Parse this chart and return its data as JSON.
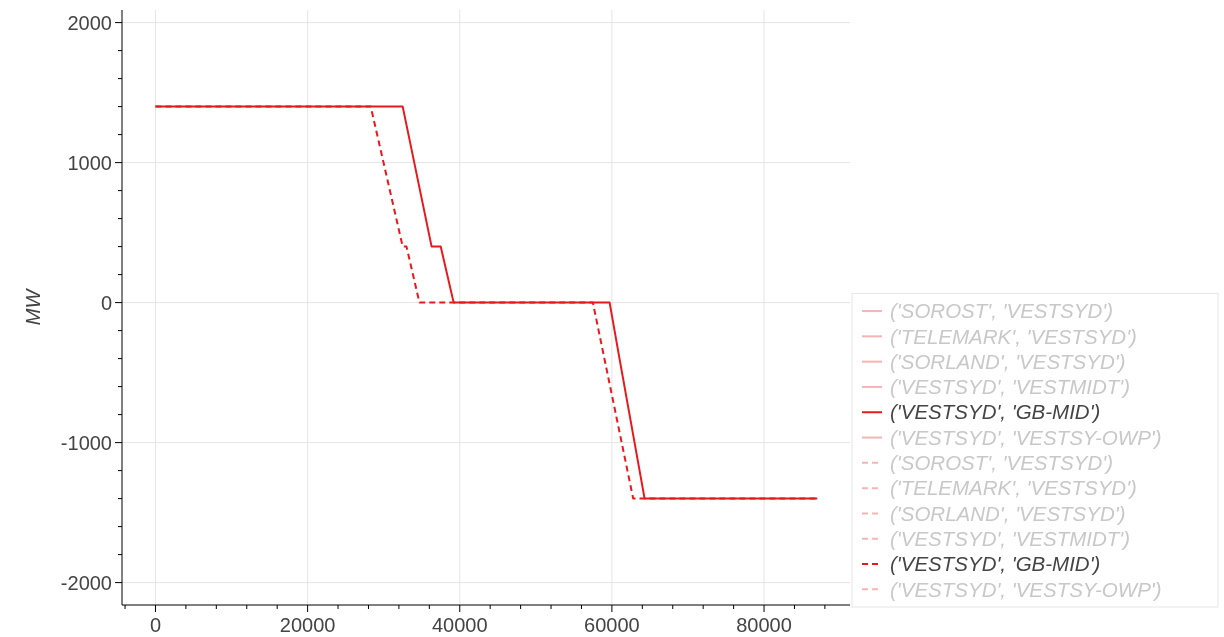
{
  "chart_data": {
    "type": "line",
    "ylabel": "MW",
    "xlim": [
      -4400,
      91300
    ],
    "ylim": [
      -2160,
      2090
    ],
    "xticks": [
      0,
      20000,
      40000,
      60000,
      80000
    ],
    "yticks": [
      -2000,
      -1000,
      0,
      1000,
      2000
    ],
    "grid": true,
    "legend": "bottom right",
    "series": [
      {
        "name": "('SOROST', 'VESTSYD')",
        "color": "#f5b5b5",
        "line_style": "solid"
      },
      {
        "name": "('TELEMARK', 'VESTSYD')",
        "color": "#f5b5b5",
        "line_style": "solid"
      },
      {
        "name": "('SORLAND', 'VESTSYD')",
        "color": "#f5b5b5",
        "line_style": "solid"
      },
      {
        "name": "('VESTSYD', 'VESTMIDT')",
        "color": "#f5b5b5",
        "line_style": "solid"
      },
      {
        "name": "('VESTSYD', 'GB-MID')",
        "color": "#e8191c",
        "line_style": "solid",
        "x": [
          0,
          32500,
          36300,
          37500,
          39200,
          59700,
          61000,
          64300,
          87000
        ],
        "values": [
          1400,
          1400,
          400,
          400,
          0,
          0,
          -400,
          -1400,
          -1400
        ]
      },
      {
        "name": "('VESTSYD', 'VESTSY-OWP')",
        "color": "#f5b5b5",
        "line_style": "solid"
      },
      {
        "name": "('SOROST', 'VESTSYD')",
        "color": "#f5b5b5",
        "line_style": "dashed"
      },
      {
        "name": "('TELEMARK', 'VESTSYD')",
        "color": "#f5b5b5",
        "line_style": "dashed"
      },
      {
        "name": "('SORLAND', 'VESTSYD')",
        "color": "#f5b5b5",
        "line_style": "dashed"
      },
      {
        "name": "('VESTSYD', 'VESTMIDT')",
        "color": "#f5b5b5",
        "line_style": "dashed"
      },
      {
        "name": "('VESTSYD', 'GB-MID')",
        "color": "#e8191c",
        "line_style": "dashed",
        "x": [
          0,
          28300,
          32500,
          33000,
          34700,
          57500,
          62800,
          87000
        ],
        "values": [
          1400,
          1400,
          400,
          400,
          0,
          0,
          -1400,
          -1400
        ]
      },
      {
        "name": "('VESTSYD', 'VESTSY-OWP')",
        "color": "#f5b5b5",
        "line_style": "dashed"
      }
    ]
  }
}
